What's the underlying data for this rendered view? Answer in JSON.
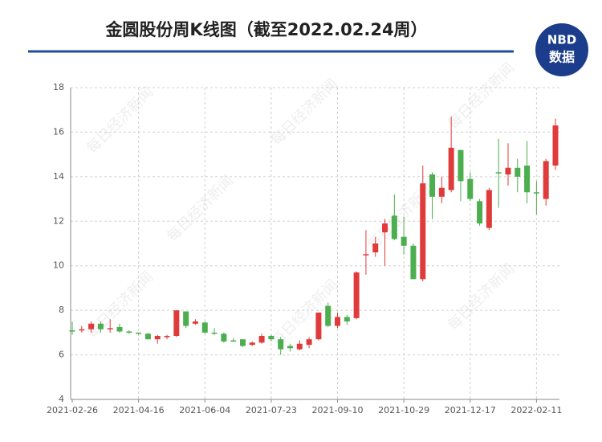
{
  "chart_data": {
    "type": "candlestick",
    "title": "金圆股份周K线图（截至2022.02.24周）",
    "logo": {
      "top": "NBD",
      "bottom": "数据"
    },
    "watermark": "每日经济新闻",
    "categories": [
      "2021-02-26",
      null,
      null,
      null,
      null,
      null,
      null,
      "2021-04-16",
      null,
      null,
      null,
      null,
      null,
      null,
      "2021-06-04",
      null,
      null,
      null,
      null,
      null,
      null,
      "2021-07-23",
      null,
      null,
      null,
      null,
      null,
      null,
      "2021-09-10",
      null,
      null,
      null,
      null,
      null,
      null,
      "2021-10-29",
      null,
      null,
      null,
      null,
      null,
      null,
      "2021-12-17",
      null,
      null,
      null,
      null,
      null,
      null,
      "2022-02-11",
      null,
      null
    ],
    "open": [
      7.1,
      7.1,
      7.15,
      7.4,
      7.15,
      7.25,
      7.05,
      7.0,
      6.95,
      6.7,
      6.8,
      6.85,
      7.95,
      7.4,
      7.45,
      7.0,
      6.95,
      6.65,
      6.7,
      6.45,
      6.55,
      6.85,
      6.7,
      6.4,
      6.25,
      6.45,
      6.7,
      8.2,
      7.3,
      7.7,
      7.65,
      10.5,
      10.6,
      11.5,
      12.25,
      11.3,
      10.9,
      9.4,
      14.1,
      13.1,
      13.4,
      15.2,
      13.9,
      12.9,
      11.7,
      14.2,
      14.1,
      14.4,
      14.5,
      13.3,
      13.0,
      14.5
    ],
    "close": [
      7.05,
      7.15,
      7.4,
      7.15,
      7.2,
      7.05,
      7.0,
      6.95,
      6.7,
      6.85,
      6.85,
      8.0,
      7.3,
      7.5,
      7.0,
      6.95,
      6.6,
      6.62,
      6.4,
      6.55,
      6.85,
      6.7,
      6.25,
      6.3,
      6.5,
      6.7,
      7.9,
      7.3,
      7.7,
      7.5,
      9.7,
      10.52,
      11.0,
      11.9,
      11.2,
      10.9,
      9.4,
      13.7,
      13.1,
      13.5,
      15.3,
      13.8,
      13.0,
      11.9,
      13.4,
      14.18,
      14.4,
      14.0,
      13.3,
      13.25,
      14.7,
      16.3
    ],
    "low": [
      6.9,
      7.0,
      7.0,
      7.0,
      7.0,
      7.0,
      6.95,
      6.9,
      6.7,
      6.5,
      6.7,
      6.8,
      7.2,
      7.35,
      6.95,
      6.9,
      6.55,
      6.6,
      6.35,
      6.4,
      6.5,
      6.6,
      6.0,
      6.15,
      6.2,
      6.3,
      6.65,
      7.25,
      7.2,
      7.35,
      7.6,
      9.6,
      10.4,
      10.0,
      11.15,
      10.5,
      9.4,
      9.3,
      12.1,
      12.8,
      13.3,
      12.9,
      12.9,
      11.8,
      11.6,
      12.6,
      13.6,
      13.3,
      12.8,
      12.3,
      12.7,
      14.3
    ],
    "high": [
      7.5,
      7.3,
      7.5,
      7.5,
      7.6,
      7.4,
      7.1,
      7.0,
      7.0,
      6.9,
      6.9,
      8.0,
      7.95,
      7.6,
      7.5,
      7.2,
      7.0,
      6.75,
      6.7,
      6.6,
      6.95,
      6.9,
      6.8,
      6.5,
      6.65,
      6.8,
      7.9,
      8.35,
      7.9,
      7.8,
      9.75,
      11.6,
      11.3,
      12.1,
      13.2,
      12.2,
      11.0,
      14.5,
      14.2,
      14.0,
      16.7,
      15.2,
      14.2,
      13.0,
      13.5,
      15.7,
      15.5,
      14.8,
      15.6,
      13.8,
      14.8,
      16.6
    ],
    "up_color": "#e03b3b",
    "down_color": "#4cae4f",
    "ylim": [
      4,
      18
    ],
    "yticks": [
      4,
      6,
      8,
      10,
      12,
      14,
      16,
      18
    ],
    "grid": true
  }
}
